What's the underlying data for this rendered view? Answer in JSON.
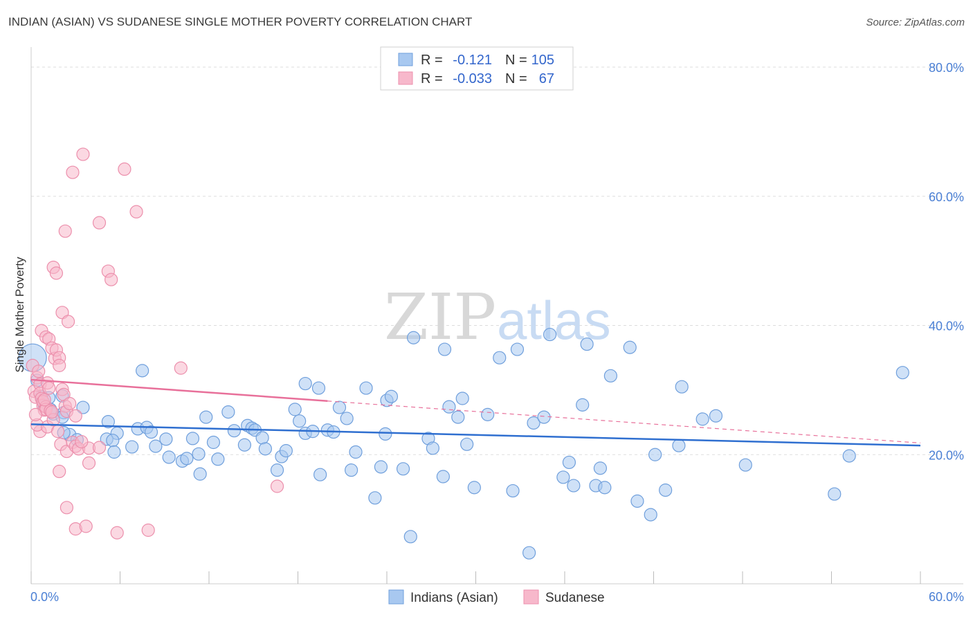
{
  "title": "INDIAN (ASIAN) VS SUDANESE SINGLE MOTHER POVERTY CORRELATION CHART",
  "source": "Source: ZipAtlas.com",
  "watermark": {
    "zip": "ZIP",
    "atlas": "atlas"
  },
  "colors": {
    "blue_fill": "#a8c8f0",
    "blue_stroke": "#6f9fdc",
    "blue_line": "#2f6fd0",
    "pink_fill": "#f7b8cb",
    "pink_stroke": "#ec8fac",
    "pink_line": "#e8709a",
    "grid": "#dddddd",
    "tick_text": "#4a7fd4"
  },
  "legend": {
    "rows": [
      {
        "r_label": "R =",
        "r_value": "-0.121",
        "n_label": "N =",
        "n_value": "105",
        "color": "blue"
      },
      {
        "r_label": "R =",
        "r_value": "-0.033",
        "n_label": "N =",
        "n_value": "67",
        "color": "pink"
      }
    ]
  },
  "chart_data": {
    "type": "scatter",
    "xlabel": "",
    "ylabel": "Single Mother Poverty",
    "xlim": [
      0,
      60
    ],
    "ylim": [
      0,
      80
    ],
    "x_tick_labels": [
      "0.0%",
      "60.0%"
    ],
    "y_ticks": [
      20,
      40,
      60,
      80
    ],
    "y_tick_labels": [
      "20.0%",
      "40.0%",
      "60.0%",
      "80.0%"
    ],
    "series": [
      {
        "name": "Indians (Asian)",
        "color": "blue",
        "trend": {
          "x0": 0,
          "y0": 24.7,
          "x1": 60,
          "y1": 21.4,
          "dash_from": null
        },
        "points": [
          [
            0.1,
            35.0
          ],
          [
            0.4,
            31.5
          ],
          [
            0.7,
            29.0
          ],
          [
            1.2,
            28.8
          ],
          [
            0.9,
            27.5
          ],
          [
            1.3,
            27.0
          ],
          [
            1.5,
            26.3
          ],
          [
            2.2,
            26.5
          ],
          [
            2.1,
            29.1
          ],
          [
            2.1,
            25.8
          ],
          [
            2.6,
            23.1
          ],
          [
            2.2,
            23.4
          ],
          [
            3.1,
            22.3
          ],
          [
            3.5,
            27.3
          ],
          [
            5.2,
            25.1
          ],
          [
            5.8,
            23.3
          ],
          [
            5.1,
            22.4
          ],
          [
            5.5,
            22.2
          ],
          [
            5.6,
            20.4
          ],
          [
            6.8,
            21.2
          ],
          [
            7.2,
            24.0
          ],
          [
            7.8,
            24.2
          ],
          [
            8.1,
            23.5
          ],
          [
            8.4,
            21.3
          ],
          [
            7.5,
            33.0
          ],
          [
            9.1,
            22.4
          ],
          [
            9.3,
            19.6
          ],
          [
            10.2,
            19.0
          ],
          [
            10.5,
            19.4
          ],
          [
            10.9,
            22.5
          ],
          [
            11.3,
            20.1
          ],
          [
            11.4,
            17.0
          ],
          [
            11.8,
            25.8
          ],
          [
            12.3,
            21.9
          ],
          [
            12.6,
            19.3
          ],
          [
            13.3,
            26.6
          ],
          [
            13.7,
            23.7
          ],
          [
            14.4,
            21.5
          ],
          [
            14.6,
            24.5
          ],
          [
            14.9,
            24.1
          ],
          [
            15.1,
            23.8
          ],
          [
            15.6,
            22.6
          ],
          [
            15.8,
            20.9
          ],
          [
            16.6,
            17.6
          ],
          [
            16.9,
            19.7
          ],
          [
            17.2,
            20.6
          ],
          [
            17.8,
            27.0
          ],
          [
            18.1,
            25.2
          ],
          [
            18.5,
            23.3
          ],
          [
            18.5,
            31.0
          ],
          [
            19.0,
            23.6
          ],
          [
            19.4,
            30.3
          ],
          [
            19.5,
            16.9
          ],
          [
            20.0,
            23.8
          ],
          [
            20.4,
            23.5
          ],
          [
            20.8,
            27.3
          ],
          [
            21.3,
            25.6
          ],
          [
            21.6,
            17.6
          ],
          [
            21.9,
            20.4
          ],
          [
            22.6,
            30.3
          ],
          [
            23.2,
            13.3
          ],
          [
            23.6,
            18.1
          ],
          [
            23.9,
            23.2
          ],
          [
            24.0,
            28.4
          ],
          [
            24.3,
            29.0
          ],
          [
            25.1,
            17.8
          ],
          [
            25.6,
            7.3
          ],
          [
            25.8,
            38.1
          ],
          [
            26.8,
            22.5
          ],
          [
            27.1,
            21.0
          ],
          [
            27.8,
            16.6
          ],
          [
            27.9,
            36.3
          ],
          [
            28.2,
            27.4
          ],
          [
            28.8,
            25.8
          ],
          [
            29.1,
            28.7
          ],
          [
            29.4,
            21.6
          ],
          [
            29.9,
            14.9
          ],
          [
            30.8,
            26.2
          ],
          [
            31.6,
            35.0
          ],
          [
            32.5,
            14.4
          ],
          [
            32.8,
            36.3
          ],
          [
            33.6,
            4.8
          ],
          [
            33.9,
            24.9
          ],
          [
            34.6,
            25.8
          ],
          [
            35.0,
            38.6
          ],
          [
            35.9,
            16.5
          ],
          [
            36.3,
            18.8
          ],
          [
            36.6,
            15.2
          ],
          [
            37.2,
            27.7
          ],
          [
            37.5,
            37.1
          ],
          [
            38.1,
            15.2
          ],
          [
            38.4,
            17.9
          ],
          [
            38.7,
            14.9
          ],
          [
            39.1,
            32.2
          ],
          [
            40.4,
            36.6
          ],
          [
            40.9,
            12.8
          ],
          [
            41.8,
            10.7
          ],
          [
            42.1,
            20.0
          ],
          [
            42.8,
            14.5
          ],
          [
            43.7,
            21.4
          ],
          [
            43.9,
            30.5
          ],
          [
            45.3,
            25.5
          ],
          [
            46.2,
            26.0
          ],
          [
            48.2,
            18.4
          ],
          [
            54.2,
            13.9
          ],
          [
            55.2,
            19.8
          ],
          [
            58.8,
            32.7
          ]
        ]
      },
      {
        "name": "Sudanese",
        "color": "pink",
        "trend": {
          "x0": 0,
          "y0": 31.6,
          "x1": 20.0,
          "y1": 28.3,
          "dash_to": {
            "x": 60,
            "y": 21.8
          }
        },
        "points": [
          [
            0.1,
            33.8
          ],
          [
            0.2,
            29.8
          ],
          [
            0.3,
            28.9
          ],
          [
            0.4,
            31.9
          ],
          [
            0.5,
            32.9
          ],
          [
            0.6,
            30.9
          ],
          [
            0.6,
            29.5
          ],
          [
            0.7,
            28.7
          ],
          [
            0.8,
            27.6
          ],
          [
            0.8,
            28.2
          ],
          [
            0.9,
            26.9
          ],
          [
            1.0,
            27.4
          ],
          [
            1.0,
            27.0
          ],
          [
            1.1,
            31.1
          ],
          [
            1.2,
            30.3
          ],
          [
            1.3,
            26.8
          ],
          [
            0.6,
            23.6
          ],
          [
            0.4,
            24.6
          ],
          [
            0.7,
            39.2
          ],
          [
            1.0,
            38.2
          ],
          [
            1.2,
            37.9
          ],
          [
            1.4,
            36.5
          ],
          [
            1.6,
            34.9
          ],
          [
            1.7,
            36.2
          ],
          [
            1.9,
            35.0
          ],
          [
            1.9,
            33.8
          ],
          [
            2.1,
            30.1
          ],
          [
            2.2,
            29.3
          ],
          [
            2.3,
            27.5
          ],
          [
            2.4,
            26.7
          ],
          [
            1.1,
            24.3
          ],
          [
            1.5,
            25.4
          ],
          [
            1.8,
            23.6
          ],
          [
            2.0,
            21.6
          ],
          [
            2.4,
            20.5
          ],
          [
            2.8,
            21.9
          ],
          [
            3.0,
            21.3
          ],
          [
            3.2,
            20.9
          ],
          [
            3.9,
            21.0
          ],
          [
            4.6,
            21.1
          ],
          [
            1.9,
            17.4
          ],
          [
            2.4,
            11.8
          ],
          [
            3.0,
            8.5
          ],
          [
            3.7,
            8.9
          ],
          [
            3.9,
            18.7
          ],
          [
            1.5,
            49.0
          ],
          [
            1.7,
            48.1
          ],
          [
            2.1,
            42.0
          ],
          [
            2.5,
            40.6
          ],
          [
            2.3,
            54.6
          ],
          [
            4.6,
            55.9
          ],
          [
            5.2,
            48.4
          ],
          [
            5.4,
            47.1
          ],
          [
            2.8,
            63.7
          ],
          [
            3.5,
            66.5
          ],
          [
            6.3,
            64.2
          ],
          [
            7.1,
            57.6
          ],
          [
            5.8,
            7.9
          ],
          [
            7.9,
            8.3
          ],
          [
            10.1,
            33.4
          ],
          [
            16.6,
            15.1
          ],
          [
            3.0,
            26.0
          ],
          [
            1.4,
            26.6
          ],
          [
            0.9,
            28.5
          ],
          [
            2.6,
            27.9
          ],
          [
            0.3,
            26.2
          ],
          [
            3.4,
            22.0
          ]
        ]
      }
    ]
  },
  "bottom_legend": [
    {
      "label": "Indians (Asian)",
      "color": "blue"
    },
    {
      "label": "Sudanese",
      "color": "pink"
    }
  ]
}
